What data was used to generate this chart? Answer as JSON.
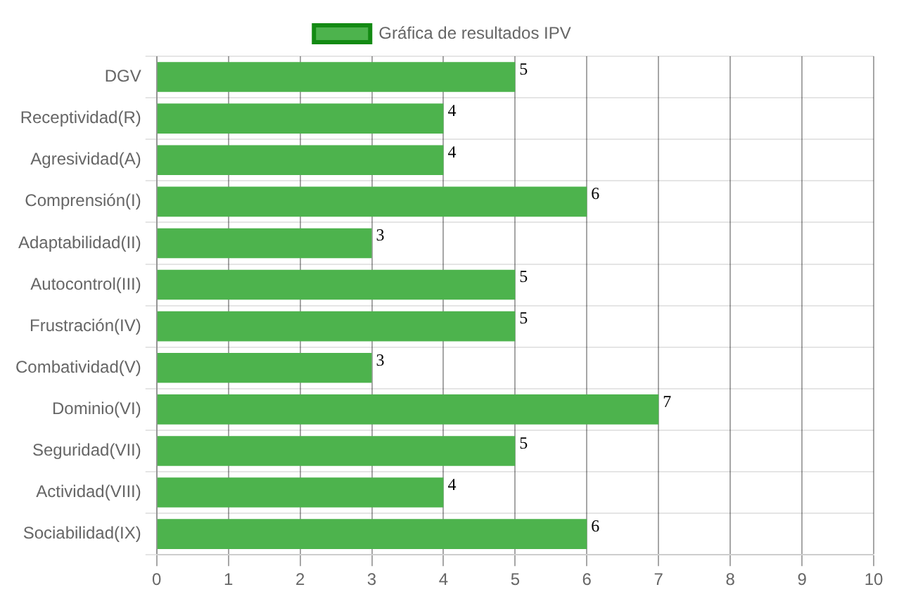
{
  "chart_data": {
    "type": "bar",
    "orientation": "horizontal",
    "categories": [
      "DGV",
      "Receptividad(R)",
      "Agresividad(A)",
      "Comprensión(I)",
      "Adaptabilidad(II)",
      "Autocontrol(III)",
      "Frustración(IV)",
      "Combatividad(V)",
      "Dominio(VI)",
      "Seguridad(VII)",
      "Actividad(VIII)",
      "Sociabilidad(IX)"
    ],
    "series": [
      {
        "name": "Gráfica de resultados IPV",
        "color": "#4db34d",
        "values": [
          5,
          4,
          4,
          6,
          3,
          5,
          5,
          3,
          7,
          5,
          4,
          6
        ]
      }
    ],
    "xlim": [
      0,
      10
    ],
    "xticks": [
      0,
      1,
      2,
      3,
      4,
      5,
      6,
      7,
      8,
      9,
      10
    ],
    "grid": true,
    "legend": "top",
    "data_labels": true
  }
}
